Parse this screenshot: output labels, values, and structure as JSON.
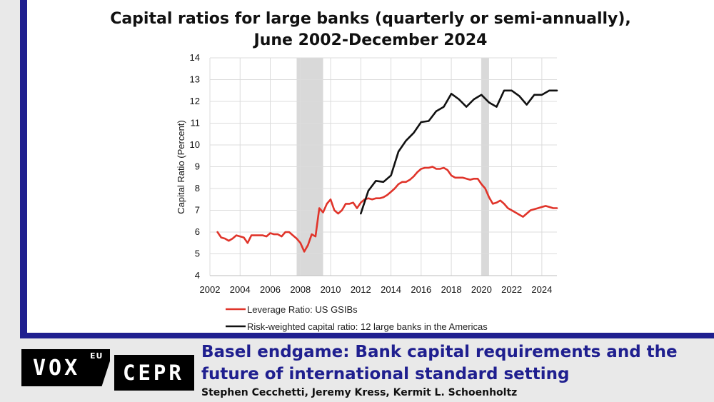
{
  "chart_data": {
    "type": "line",
    "title_line1": "Capital ratios for large banks (quarterly or semi-annually),",
    "title_line2": "June 2002-December 2024",
    "ylabel": "Capital Ratio (Percent)",
    "xlabel": "",
    "xlim": [
      2002,
      2025
    ],
    "ylim": [
      4,
      14
    ],
    "x_ticks": [
      "2002",
      "2004",
      "2006",
      "2008",
      "2010",
      "2012",
      "2014",
      "2016",
      "2018",
      "2020",
      "2022",
      "2024"
    ],
    "y_ticks": [
      "4",
      "5",
      "6",
      "7",
      "8",
      "9",
      "10",
      "11",
      "12",
      "13",
      "14"
    ],
    "grid": true,
    "legend_position": "bottom-left",
    "shaded_periods": [
      [
        2007.75,
        2009.5
      ],
      [
        2020.0,
        2020.5
      ]
    ],
    "series": [
      {
        "name": "Leverage Ratio: US GSIBs",
        "color": "#e0342a",
        "points": [
          [
            2002.5,
            6.0
          ],
          [
            2002.75,
            5.75
          ],
          [
            2003.0,
            5.7
          ],
          [
            2003.25,
            5.6
          ],
          [
            2003.5,
            5.7
          ],
          [
            2003.75,
            5.85
          ],
          [
            2004.0,
            5.8
          ],
          [
            2004.25,
            5.75
          ],
          [
            2004.5,
            5.5
          ],
          [
            2004.75,
            5.85
          ],
          [
            2005.0,
            5.85
          ],
          [
            2005.25,
            5.85
          ],
          [
            2005.5,
            5.85
          ],
          [
            2005.75,
            5.8
          ],
          [
            2006.0,
            5.95
          ],
          [
            2006.25,
            5.9
          ],
          [
            2006.5,
            5.9
          ],
          [
            2006.75,
            5.8
          ],
          [
            2007.0,
            6.0
          ],
          [
            2007.25,
            6.0
          ],
          [
            2007.5,
            5.85
          ],
          [
            2007.75,
            5.7
          ],
          [
            2008.0,
            5.5
          ],
          [
            2008.25,
            5.1
          ],
          [
            2008.5,
            5.4
          ],
          [
            2008.75,
            5.9
          ],
          [
            2009.0,
            5.8
          ],
          [
            2009.25,
            7.1
          ],
          [
            2009.5,
            6.9
          ],
          [
            2009.75,
            7.3
          ],
          [
            2010.0,
            7.5
          ],
          [
            2010.25,
            7.0
          ],
          [
            2010.5,
            6.85
          ],
          [
            2010.75,
            7.0
          ],
          [
            2011.0,
            7.3
          ],
          [
            2011.25,
            7.3
          ],
          [
            2011.5,
            7.35
          ],
          [
            2011.75,
            7.1
          ],
          [
            2012.0,
            7.35
          ],
          [
            2012.25,
            7.5
          ],
          [
            2012.5,
            7.55
          ],
          [
            2012.75,
            7.5
          ],
          [
            2013.0,
            7.55
          ],
          [
            2013.25,
            7.55
          ],
          [
            2013.5,
            7.6
          ],
          [
            2013.75,
            7.7
          ],
          [
            2014.0,
            7.85
          ],
          [
            2014.25,
            8.0
          ],
          [
            2014.5,
            8.2
          ],
          [
            2014.75,
            8.3
          ],
          [
            2015.0,
            8.3
          ],
          [
            2015.25,
            8.4
          ],
          [
            2015.5,
            8.55
          ],
          [
            2015.75,
            8.75
          ],
          [
            2016.0,
            8.9
          ],
          [
            2016.25,
            8.95
          ],
          [
            2016.5,
            8.95
          ],
          [
            2016.75,
            9.0
          ],
          [
            2017.0,
            8.9
          ],
          [
            2017.25,
            8.9
          ],
          [
            2017.5,
            8.95
          ],
          [
            2017.75,
            8.85
          ],
          [
            2018.0,
            8.6
          ],
          [
            2018.25,
            8.5
          ],
          [
            2018.5,
            8.5
          ],
          [
            2018.75,
            8.5
          ],
          [
            2019.0,
            8.45
          ],
          [
            2019.25,
            8.4
          ],
          [
            2019.5,
            8.45
          ],
          [
            2019.75,
            8.45
          ],
          [
            2020.0,
            8.2
          ],
          [
            2020.25,
            8.0
          ],
          [
            2020.5,
            7.6
          ],
          [
            2020.75,
            7.3
          ],
          [
            2021.0,
            7.35
          ],
          [
            2021.25,
            7.45
          ],
          [
            2021.5,
            7.3
          ],
          [
            2021.75,
            7.1
          ],
          [
            2022.0,
            7.0
          ],
          [
            2022.25,
            6.9
          ],
          [
            2022.5,
            6.8
          ],
          [
            2022.75,
            6.7
          ],
          [
            2023.0,
            6.85
          ],
          [
            2023.25,
            7.0
          ],
          [
            2023.5,
            7.05
          ],
          [
            2023.75,
            7.1
          ],
          [
            2024.0,
            7.15
          ],
          [
            2024.25,
            7.2
          ],
          [
            2024.5,
            7.15
          ],
          [
            2024.75,
            7.1
          ],
          [
            2025.0,
            7.1
          ]
        ]
      },
      {
        "name": "Risk-weighted capital ratio: 12 large banks in the Americas",
        "color": "#111111",
        "points": [
          [
            2012.0,
            6.85
          ],
          [
            2012.5,
            7.9
          ],
          [
            2013.0,
            8.35
          ],
          [
            2013.5,
            8.3
          ],
          [
            2014.0,
            8.6
          ],
          [
            2014.5,
            9.7
          ],
          [
            2015.0,
            10.2
          ],
          [
            2015.5,
            10.55
          ],
          [
            2016.0,
            11.05
          ],
          [
            2016.5,
            11.1
          ],
          [
            2017.0,
            11.55
          ],
          [
            2017.5,
            11.75
          ],
          [
            2018.0,
            12.35
          ],
          [
            2018.5,
            12.1
          ],
          [
            2019.0,
            11.75
          ],
          [
            2019.5,
            12.1
          ],
          [
            2020.0,
            12.3
          ],
          [
            2020.5,
            11.95
          ],
          [
            2021.0,
            11.75
          ],
          [
            2021.5,
            12.5
          ],
          [
            2022.0,
            12.5
          ],
          [
            2022.5,
            12.25
          ],
          [
            2023.0,
            11.85
          ],
          [
            2023.5,
            12.3
          ],
          [
            2024.0,
            12.3
          ],
          [
            2024.5,
            12.5
          ],
          [
            2025.0,
            12.5
          ]
        ]
      }
    ]
  },
  "footer": {
    "logo_vox": "VOX",
    "logo_eu": "EU",
    "logo_cepr": "CEPR",
    "article_title": "Basel endgame: Bank capital requirements and the future of international standard setting",
    "authors": "Stephen Cecchetti, Jeremy Kress, Kermit L. Schoenholtz"
  },
  "colors": {
    "frame": "#1f1f8f",
    "title_blue": "#1f1f8f",
    "shade": "#d9d9d9",
    "grid": "#dcdcdc"
  }
}
